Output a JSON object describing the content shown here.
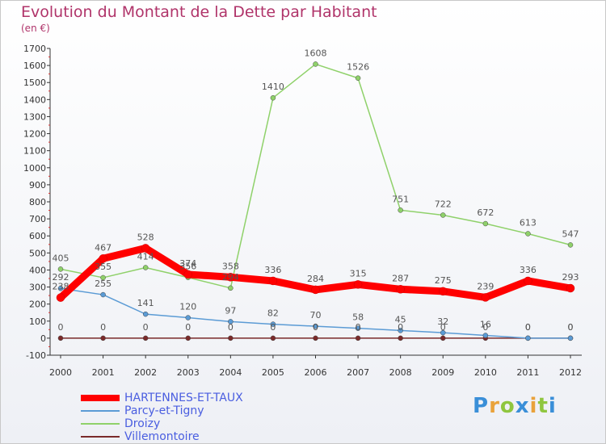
{
  "chart_data": {
    "type": "line",
    "title": "Evolution du Montant de la Dette par Habitant",
    "subtitle": "(en €)",
    "x": [
      "2000",
      "2001",
      "2002",
      "2003",
      "2004",
      "2005",
      "2006",
      "2007",
      "2008",
      "2009",
      "2010",
      "2011",
      "2012"
    ],
    "ylim": [
      -100,
      1700
    ],
    "yticks": [
      -100,
      0,
      100,
      200,
      300,
      400,
      500,
      600,
      700,
      800,
      900,
      1000,
      1100,
      1200,
      1300,
      1400,
      1500,
      1600,
      1700
    ],
    "grid": false,
    "legend_position": "bottom-left",
    "series": [
      {
        "name": "HARTENNES-ET-TAUX",
        "color": "#ff0000",
        "values": [
          238,
          467,
          528,
          374,
          358,
          336,
          284,
          315,
          287,
          275,
          239,
          336,
          293
        ]
      },
      {
        "name": "Parcy-et-Tigny",
        "color": "#5b9bd5",
        "values": [
          292,
          255,
          141,
          120,
          97,
          82,
          70,
          58,
          45,
          32,
          16,
          0,
          0
        ]
      },
      {
        "name": "Droizy",
        "color": "#8fd16a",
        "values": [
          405,
          355,
          414,
          356,
          294,
          1410,
          1608,
          1526,
          751,
          722,
          672,
          613,
          547
        ]
      },
      {
        "name": "Villemontoire",
        "color": "#7a2a2a",
        "values": [
          0,
          0,
          0,
          0,
          0,
          0,
          0,
          0,
          0,
          0,
          0,
          0,
          0
        ]
      }
    ],
    "data_labels": [
      [
        238,
        467,
        528,
        374,
        358,
        336,
        284,
        315,
        287,
        275,
        239,
        336,
        293
      ],
      [
        292,
        255,
        141,
        120,
        97,
        82,
        70,
        58,
        45,
        32,
        16,
        0,
        0
      ],
      [
        405,
        355,
        414,
        356,
        294,
        1410,
        1608,
        1526,
        751,
        722,
        672,
        613,
        547
      ],
      [
        0,
        0,
        0,
        0,
        0,
        0,
        0,
        0,
        0,
        0,
        0,
        0,
        0
      ]
    ]
  },
  "logo": {
    "text": "Proxiti"
  }
}
